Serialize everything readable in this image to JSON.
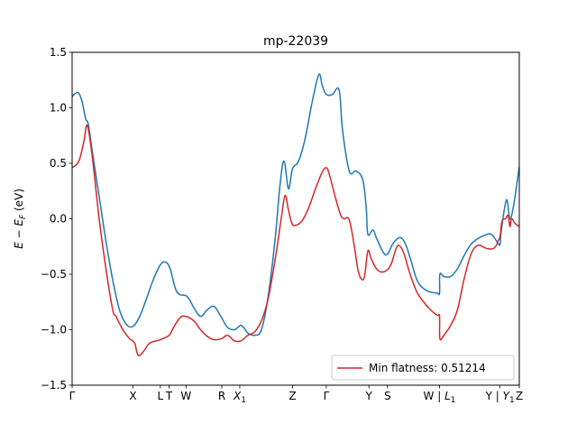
{
  "chart_data": {
    "type": "line",
    "title": "mp-22039",
    "xlabel": "",
    "ylabel": "E − E_F (eV)",
    "ylabel_parts": {
      "main": "E − E",
      "sub": "F",
      "unit": " (eV)"
    },
    "xlim": [
      0,
      13.23
    ],
    "ylim": [
      -1.5,
      1.5
    ],
    "yticks": [
      -1.5,
      -1.0,
      -0.5,
      0.0,
      0.5,
      1.0,
      1.5
    ],
    "ytick_labels": [
      "−1.5",
      "−1.0",
      "−0.5",
      "0.0",
      "0.5",
      "1.0",
      "1.5"
    ],
    "xticks": [
      {
        "pos": 0.0,
        "label": "Γ"
      },
      {
        "pos": 1.8,
        "label": "X"
      },
      {
        "pos": 2.61,
        "label": "L"
      },
      {
        "pos": 2.87,
        "label": "T"
      },
      {
        "pos": 3.37,
        "label": "W"
      },
      {
        "pos": 4.43,
        "label": "R"
      },
      {
        "pos": 4.96,
        "label": "X",
        "sub": "1"
      },
      {
        "pos": 6.52,
        "label": "Z"
      },
      {
        "pos": 7.52,
        "label": "Γ"
      },
      {
        "pos": 8.78,
        "label": "Y"
      },
      {
        "pos": 9.33,
        "label": "S"
      },
      {
        "pos": 10.87,
        "label": "W | L",
        "sub": "1"
      },
      {
        "pos": 12.66,
        "label": "Y | Y",
        "sub": "1"
      },
      {
        "pos": 13.23,
        "label": "Z"
      }
    ],
    "grid": false,
    "legend": {
      "position": "bottom-right",
      "entries": [
        "Min flatness: 0.51214"
      ]
    },
    "series": [
      {
        "color": "#1f77b4",
        "x": [
          0.0,
          0.1,
          0.2,
          0.3,
          0.4,
          0.48,
          0.6,
          0.8,
          1.0,
          1.2,
          1.4,
          1.6,
          1.8,
          2.0,
          2.2,
          2.4,
          2.6,
          2.75,
          2.9,
          3.1,
          3.4,
          3.6,
          3.8,
          4.0,
          4.2,
          4.4,
          4.6,
          4.8,
          4.9,
          5.0,
          5.1,
          5.2,
          5.4,
          5.6,
          5.8,
          6.0,
          6.15,
          6.27,
          6.4,
          6.52,
          6.7,
          6.9,
          7.1,
          7.3,
          7.4,
          7.52,
          7.7,
          7.9,
          8.0,
          8.2,
          8.4,
          8.6,
          8.7,
          8.75,
          8.9,
          9.0,
          9.2,
          9.33,
          9.5,
          9.7,
          9.85,
          10.0,
          10.2,
          10.4,
          10.6,
          10.8,
          10.87,
          10.88,
          11.0,
          11.2,
          11.4,
          11.6,
          11.8,
          12.0,
          12.2,
          12.4,
          12.6,
          12.66,
          12.7,
          12.85,
          12.95,
          13.05,
          13.15,
          13.23
        ],
        "y": [
          1.1,
          1.13,
          1.13,
          1.05,
          0.9,
          0.85,
          0.6,
          0.2,
          -0.2,
          -0.55,
          -0.82,
          -0.95,
          -0.97,
          -0.88,
          -0.72,
          -0.55,
          -0.42,
          -0.39,
          -0.45,
          -0.66,
          -0.7,
          -0.8,
          -0.88,
          -0.82,
          -0.79,
          -0.88,
          -0.98,
          -1.0,
          -0.98,
          -0.96,
          -0.99,
          -1.03,
          -1.05,
          -1.0,
          -0.7,
          -0.2,
          0.3,
          0.52,
          0.27,
          0.45,
          0.52,
          0.73,
          1.05,
          1.3,
          1.2,
          1.12,
          1.12,
          1.16,
          0.8,
          0.43,
          0.43,
          0.35,
          0.1,
          -0.14,
          -0.1,
          -0.17,
          -0.3,
          -0.32,
          -0.22,
          -0.17,
          -0.22,
          -0.35,
          -0.55,
          -0.63,
          -0.66,
          -0.67,
          -0.67,
          -0.5,
          -0.52,
          -0.52,
          -0.45,
          -0.33,
          -0.23,
          -0.18,
          -0.15,
          -0.14,
          -0.22,
          -0.23,
          -0.1,
          0.17,
          0.0,
          0.1,
          0.3,
          0.47
        ]
      },
      {
        "color": "#d62728",
        "x": [
          0.0,
          0.2,
          0.35,
          0.45,
          0.6,
          0.8,
          1.0,
          1.2,
          1.3,
          1.5,
          1.7,
          1.85,
          1.95,
          2.1,
          2.3,
          2.61,
          2.87,
          3.0,
          3.2,
          3.37,
          3.6,
          3.8,
          4.0,
          4.2,
          4.43,
          4.6,
          4.8,
          5.0,
          5.2,
          5.4,
          5.6,
          5.8,
          6.0,
          6.1,
          6.2,
          6.3,
          6.4,
          6.5,
          6.6,
          6.8,
          7.0,
          7.2,
          7.4,
          7.52,
          7.6,
          7.8,
          7.95,
          8.05,
          8.2,
          8.35,
          8.45,
          8.55,
          8.65,
          8.75,
          8.85,
          9.0,
          9.15,
          9.33,
          9.45,
          9.55,
          9.65,
          9.8,
          10.0,
          10.2,
          10.4,
          10.6,
          10.8,
          10.87,
          10.88,
          11.0,
          11.2,
          11.4,
          11.6,
          11.8,
          12.0,
          12.2,
          12.3,
          12.45,
          12.55,
          12.6,
          12.66,
          12.72,
          12.82,
          12.9,
          12.95,
          13.0,
          13.1,
          13.23
        ],
        "y": [
          0.46,
          0.52,
          0.7,
          0.84,
          0.55,
          0.0,
          -0.45,
          -0.82,
          -0.88,
          -1.0,
          -1.08,
          -1.12,
          -1.23,
          -1.2,
          -1.12,
          -1.09,
          -1.05,
          -0.98,
          -0.89,
          -0.88,
          -0.92,
          -1.0,
          -1.06,
          -1.09,
          -1.08,
          -1.05,
          -1.1,
          -1.1,
          -1.05,
          -1.02,
          -0.92,
          -0.72,
          -0.38,
          -0.18,
          0.03,
          0.21,
          0.08,
          -0.04,
          -0.06,
          -0.02,
          0.1,
          0.27,
          0.42,
          0.46,
          0.41,
          0.18,
          0.03,
          0.0,
          -0.01,
          -0.25,
          -0.45,
          -0.54,
          -0.52,
          -0.29,
          -0.36,
          -0.45,
          -0.48,
          -0.46,
          -0.4,
          -0.3,
          -0.24,
          -0.3,
          -0.5,
          -0.66,
          -0.75,
          -0.82,
          -0.87,
          -0.88,
          -1.08,
          -1.05,
          -0.96,
          -0.82,
          -0.54,
          -0.32,
          -0.24,
          -0.26,
          -0.27,
          -0.27,
          -0.24,
          -0.2,
          -0.16,
          -0.02,
          0.0,
          0.03,
          -0.07,
          0.0,
          -0.04,
          -0.07
        ]
      }
    ]
  }
}
